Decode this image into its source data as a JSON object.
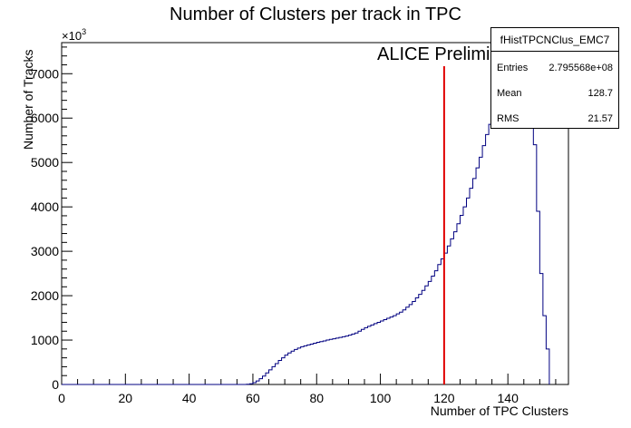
{
  "chart_data": {
    "type": "histogram",
    "title": "Number of Clusters per track in TPC",
    "xlabel": "Number of TPC Clusters",
    "ylabel": "Number of Tracks",
    "y_multiplier": "×10",
    "y_multiplier_exp": "3",
    "xlim": [
      0,
      159
    ],
    "ylim": [
      0,
      7700
    ],
    "x_ticks": [
      0,
      20,
      40,
      60,
      80,
      100,
      120,
      140
    ],
    "y_ticks": [
      0,
      1000,
      2000,
      3000,
      4000,
      5000,
      6000,
      7000
    ],
    "annotation": "ALICE Preliminary",
    "cut_line_x": 120,
    "bin_start": 0,
    "bin_width": 1,
    "counts": [
      0,
      0,
      0,
      0,
      0,
      0,
      0,
      0,
      0,
      0,
      0,
      0,
      0,
      0,
      0,
      0,
      0,
      0,
      0,
      0,
      0,
      0,
      0,
      0,
      0,
      0,
      0,
      0,
      0,
      0,
      0,
      0,
      0,
      0,
      0,
      0,
      0,
      0,
      0,
      0,
      0,
      0,
      0,
      0,
      0,
      0,
      0,
      0,
      0,
      0,
      0,
      0,
      0,
      0,
      0,
      0,
      0,
      0,
      5,
      15,
      40,
      80,
      130,
      190,
      260,
      330,
      400,
      470,
      540,
      600,
      660,
      710,
      750,
      790,
      820,
      850,
      870,
      890,
      910,
      930,
      950,
      965,
      980,
      1000,
      1015,
      1030,
      1045,
      1060,
      1075,
      1090,
      1110,
      1135,
      1160,
      1200,
      1240,
      1280,
      1310,
      1340,
      1370,
      1400,
      1430,
      1460,
      1490,
      1520,
      1550,
      1590,
      1630,
      1680,
      1740,
      1800,
      1870,
      1950,
      2030,
      2120,
      2220,
      2320,
      2440,
      2560,
      2700,
      2830,
      2960,
      3120,
      3280,
      3440,
      3620,
      3810,
      4000,
      4200,
      4420,
      4640,
      4880,
      5120,
      5380,
      5630,
      5860,
      6080,
      6300,
      6500,
      6680,
      6840,
      6960,
      7060,
      7120,
      7150,
      7120,
      7040,
      6850,
      6400,
      5400,
      3900,
      2500,
      1550,
      800
    ],
    "series": [
      {
        "name": "fHistTPCNClus_EMC7",
        "color": "#000080"
      }
    ]
  },
  "stats_box": {
    "title": "fHistTPCNClus_EMC7",
    "rows": [
      {
        "label": "Entries",
        "value": "2.795568e+08"
      },
      {
        "label": "Mean",
        "value": "128.7"
      },
      {
        "label": "RMS",
        "value": "21.57"
      }
    ]
  },
  "colors": {
    "hist_line": "#000080",
    "cut_line": "#e00000",
    "axis": "#000000"
  }
}
